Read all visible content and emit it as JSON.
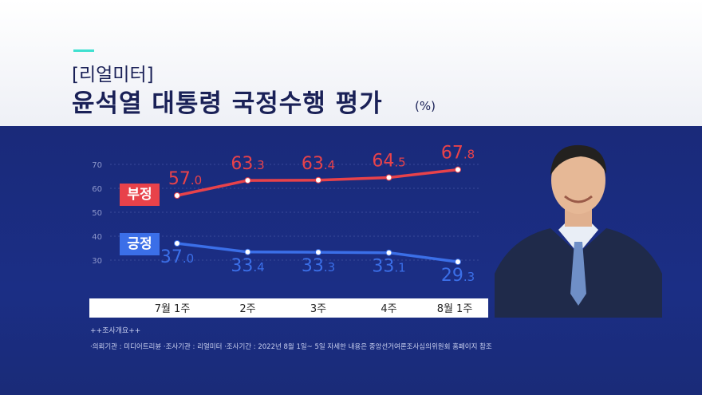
{
  "header": {
    "kicker": "[리얼미터]",
    "title": "윤석열 대통령 국정수행 평가",
    "unit": "(%)"
  },
  "colors": {
    "negative": "#e8424a",
    "positive": "#3b6fe8",
    "panel": "#1b2a72",
    "accent": "#3fe0d0"
  },
  "chart_data": {
    "type": "line",
    "categories": [
      "7월 1주",
      "2주",
      "3주",
      "4주",
      "8월 1주"
    ],
    "series": [
      {
        "name": "부정",
        "values": [
          57.0,
          63.3,
          63.4,
          64.5,
          67.8
        ],
        "color": "#e8424a"
      },
      {
        "name": "긍정",
        "values": [
          37.0,
          33.4,
          33.3,
          33.1,
          29.3
        ],
        "color": "#3b6fe8"
      }
    ],
    "ylim": [
      25,
      72
    ],
    "yticks": [
      "70",
      "60",
      "50",
      "40",
      "30"
    ],
    "grid": true,
    "legend": "inline-left"
  },
  "footer": {
    "title": "++조사개요++",
    "note": "·의뢰기관 : 미디어트리뷴   ·조사기관 : 리얼미터   ·조사기간 : 2022년 8월 1일~ 5일 자세한 내용은 중앙선거여론조사심의위원회 홈페이지 참조"
  },
  "icons": {
    "portrait": "person-portrait"
  }
}
